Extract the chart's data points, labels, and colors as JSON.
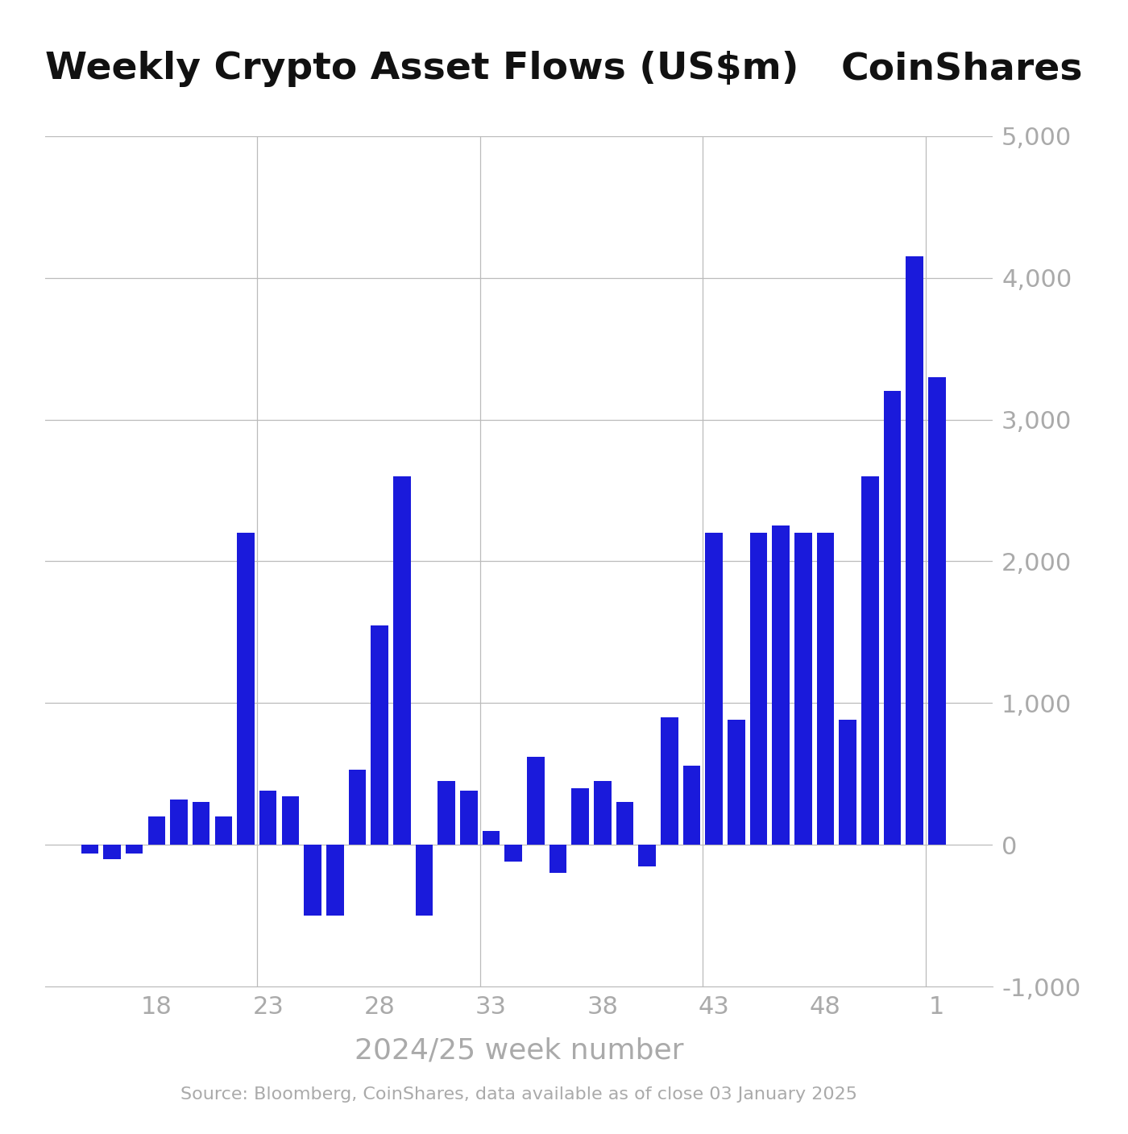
{
  "title": "Weekly Crypto Asset Flows (US$m)",
  "coinshares_label": "CoinShares",
  "xlabel": "2024/25 week number",
  "source_text": "Source: Bloomberg, CoinShares, data available as of close 03 January 2025",
  "bar_color": "#1a1adb",
  "background_color": "#ffffff",
  "grid_color": "#bbbbbb",
  "tick_color": "#aaaaaa",
  "ylim": [
    -1000,
    5000
  ],
  "ytick_vals": [
    -1000,
    0,
    1000,
    2000,
    3000,
    4000,
    5000
  ],
  "ytick_labels": [
    "-1,000",
    "0",
    "1,000",
    "2,000",
    "3,000",
    "4,000",
    "5,000"
  ],
  "xtick_labels": [
    "18",
    "23",
    "28",
    "33",
    "38",
    "43",
    "48",
    "1"
  ],
  "xtick_positions": [
    18,
    23,
    28,
    33,
    38,
    43,
    48,
    53
  ],
  "vline_positions": [
    22.5,
    32.5,
    42.5,
    52.5
  ],
  "weeks_positions": [
    15,
    16,
    17,
    18,
    19,
    20,
    21,
    22,
    23,
    24,
    25,
    26,
    27,
    28,
    29,
    30,
    31,
    32,
    33,
    34,
    35,
    36,
    37,
    38,
    39,
    40,
    41,
    42,
    43,
    44,
    45,
    46,
    47,
    48,
    49,
    50,
    51,
    52,
    53
  ],
  "values": [
    -60,
    -100,
    -60,
    200,
    320,
    300,
    200,
    2200,
    380,
    340,
    -500,
    -500,
    530,
    1550,
    2600,
    -500,
    450,
    380,
    100,
    -120,
    620,
    -200,
    400,
    450,
    300,
    -150,
    900,
    560,
    2200,
    880,
    2200,
    2250,
    2200,
    2200,
    880,
    2600,
    3200,
    4150,
    3300
  ],
  "xlim": [
    13.0,
    55.5
  ],
  "bar_width": 0.78,
  "title_fontsize": 34,
  "coinshares_fontsize": 34,
  "xlabel_fontsize": 26,
  "tick_fontsize": 22,
  "source_fontsize": 16
}
